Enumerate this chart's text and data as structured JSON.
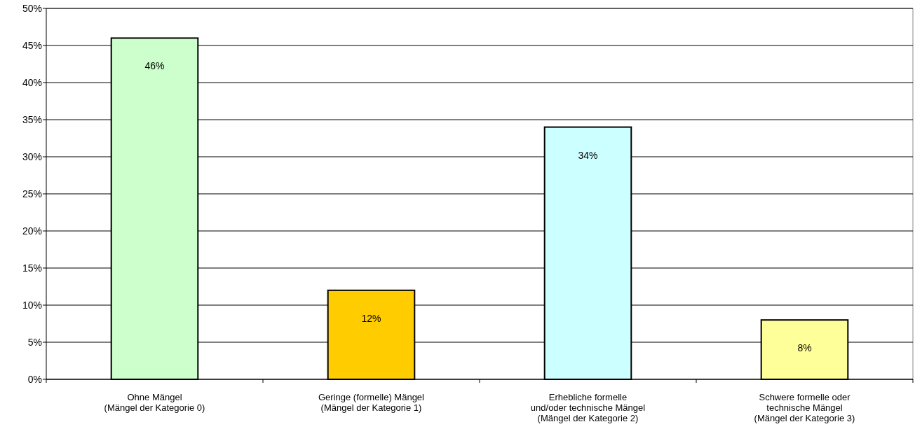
{
  "chart_data": {
    "type": "bar",
    "categories": [
      "Ohne Mängel\n(Mängel der Kategorie 0)",
      "Geringe (formelle) Mängel\n(Mängel der Kategorie 1)",
      "Erhebliche formelle\nund/oder technische Mängel\n(Mängel der Kategorie 2)",
      "Schwere formelle oder\ntechnische Mängel\n(Mängel der Kategorie 3)"
    ],
    "values": [
      46,
      12,
      34,
      8
    ],
    "colors": [
      "#ccffcc",
      "#ffcc00",
      "#ccffff",
      "#ffff99"
    ],
    "value_labels": [
      "46%",
      "12%",
      "34%",
      "8%"
    ],
    "ylim": [
      0,
      50
    ],
    "yticks": [
      {
        "value": 0,
        "label": "0%"
      },
      {
        "value": 5,
        "label": "5%"
      },
      {
        "value": 10,
        "label": "10%"
      },
      {
        "value": 15,
        "label": "15%"
      },
      {
        "value": 20,
        "label": "20%"
      },
      {
        "value": 25,
        "label": "25%"
      },
      {
        "value": 30,
        "label": "30%"
      },
      {
        "value": 35,
        "label": "35%"
      },
      {
        "value": 40,
        "label": "40%"
      },
      {
        "value": 45,
        "label": "45%"
      },
      {
        "value": 50,
        "label": "50%"
      }
    ],
    "grid": "y"
  }
}
